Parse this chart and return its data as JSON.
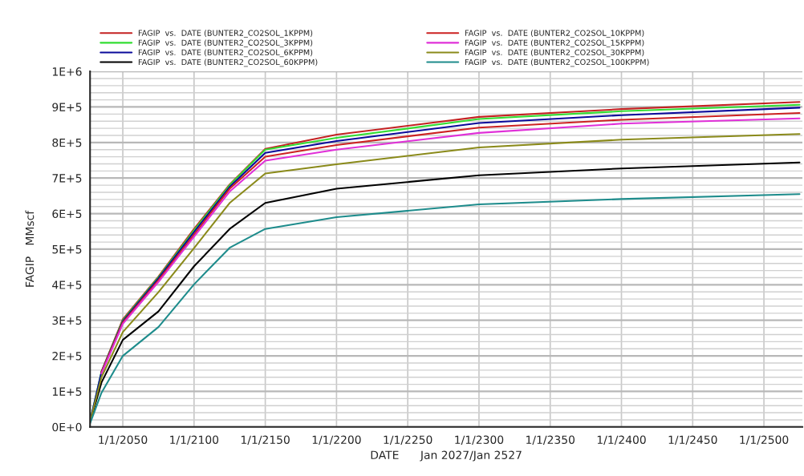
{
  "chart_data": {
    "type": "line",
    "xlabel": "DATE      Jan 2027/Jan 2527",
    "ylabel": "FAGIP   MMscf",
    "x": [
      "2027-01-01",
      "2035-01-01",
      "2050-01-01",
      "2075-01-01",
      "2100-01-01",
      "2125-01-01",
      "2150-01-01",
      "2200-01-01",
      "2300-01-01",
      "2400-01-01",
      "2525-01-01"
    ],
    "series": [
      {
        "name": "FAGIP  vs.  DATE (BUNTER2_CO2SOL_1KPPM)",
        "color": "#c42222",
        "values": [
          null,
          156000,
          303000,
          423000,
          557000,
          682000,
          782000,
          822000,
          872000,
          894000,
          914000
        ]
      },
      {
        "name": "FAGIP  vs.  DATE (BUNTER2_CO2SOL_3KPPM)",
        "color": "#33dd33",
        "values": [
          15000,
          155000,
          300000,
          421000,
          553000,
          680000,
          780000,
          813000,
          866000,
          888000,
          906000
        ]
      },
      {
        "name": "FAGIP  vs.  DATE (BUNTER2_CO2SOL_6KPPM)",
        "color": "#0a0a9a",
        "values": [
          15000,
          154000,
          297000,
          418000,
          548000,
          675000,
          771000,
          804000,
          855000,
          877000,
          898000
        ]
      },
      {
        "name": "FAGIP  vs.  DATE (BUNTER2_CO2SOL_60KPPM)",
        "color": "#000000",
        "values": [
          13000,
          125000,
          245000,
          325000,
          452000,
          557000,
          630000,
          670000,
          708000,
          727000,
          744000
        ]
      },
      {
        "name": "FAGIP  vs.  DATE (BUNTER2_CO2SOL_10KPPM)",
        "color": "#cc2222",
        "values": [
          null,
          153000,
          294000,
          413000,
          541000,
          670000,
          760000,
          793000,
          842000,
          864000,
          883000
        ]
      },
      {
        "name": "FAGIP  vs.  DATE (BUNTER2_CO2SOL_15KPPM)",
        "color": "#e030d8",
        "values": [
          null,
          150000,
          290000,
          408000,
          535000,
          662000,
          749000,
          780000,
          827000,
          853000,
          868000
        ]
      },
      {
        "name": "FAGIP  vs.  DATE (BUNTER2_CO2SOL_30KPPM)",
        "color": "#8a8a1a",
        "values": [
          14000,
          140000,
          267000,
          379000,
          503000,
          630000,
          713000,
          739000,
          786000,
          808000,
          824000
        ]
      },
      {
        "name": "FAGIP  vs.  DATE (BUNTER2_CO2SOL_100KPPM)",
        "color": "#1e8c8c",
        "values": [
          10000,
          96000,
          200000,
          281000,
          401000,
          504000,
          557000,
          590000,
          626000,
          641000,
          655000
        ]
      }
    ],
    "xlim": [
      "2027-01-01",
      "2527-01-01"
    ],
    "xticks": [
      {
        "value": "2050-01-01",
        "label": "1/1/2050"
      },
      {
        "value": "2100-01-01",
        "label": "1/1/2100"
      },
      {
        "value": "2150-01-01",
        "label": "1/1/2150"
      },
      {
        "value": "2200-01-01",
        "label": "1/1/2200"
      },
      {
        "value": "2250-01-01",
        "label": "1/1/2250"
      },
      {
        "value": "2300-01-01",
        "label": "1/1/2300"
      },
      {
        "value": "2350-01-01",
        "label": "1/1/2350"
      },
      {
        "value": "2400-01-01",
        "label": "1/1/2400"
      },
      {
        "value": "2450-01-01",
        "label": "1/1/2450"
      },
      {
        "value": "2500-01-01",
        "label": "1/1/2500"
      }
    ],
    "ylim": [
      0,
      1000000
    ],
    "yticks": [
      {
        "value": 0,
        "label": "0E+0"
      },
      {
        "value": 20000,
        "label": null
      },
      {
        "value": 40000,
        "label": null
      },
      {
        "value": 60000,
        "label": null
      },
      {
        "value": 80000,
        "label": null
      },
      {
        "value": 100000,
        "label": "1E+5"
      },
      {
        "value": 120000,
        "label": null
      },
      {
        "value": 140000,
        "label": null
      },
      {
        "value": 160000,
        "label": null
      },
      {
        "value": 180000,
        "label": null
      },
      {
        "value": 200000,
        "label": "2E+5"
      },
      {
        "value": 220000,
        "label": null
      },
      {
        "value": 240000,
        "label": null
      },
      {
        "value": 260000,
        "label": null
      },
      {
        "value": 280000,
        "label": null
      },
      {
        "value": 300000,
        "label": "3E+5"
      },
      {
        "value": 320000,
        "label": null
      },
      {
        "value": 340000,
        "label": null
      },
      {
        "value": 360000,
        "label": null
      },
      {
        "value": 380000,
        "label": null
      },
      {
        "value": 400000,
        "label": "4E+5"
      },
      {
        "value": 420000,
        "label": null
      },
      {
        "value": 440000,
        "label": null
      },
      {
        "value": 460000,
        "label": null
      },
      {
        "value": 480000,
        "label": null
      },
      {
        "value": 500000,
        "label": "5E+5"
      },
      {
        "value": 520000,
        "label": null
      },
      {
        "value": 540000,
        "label": null
      },
      {
        "value": 560000,
        "label": null
      },
      {
        "value": 580000,
        "label": null
      },
      {
        "value": 600000,
        "label": "6E+5"
      },
      {
        "value": 620000,
        "label": null
      },
      {
        "value": 640000,
        "label": null
      },
      {
        "value": 660000,
        "label": null
      },
      {
        "value": 680000,
        "label": null
      },
      {
        "value": 700000,
        "label": "7E+5"
      },
      {
        "value": 720000,
        "label": null
      },
      {
        "value": 740000,
        "label": null
      },
      {
        "value": 760000,
        "label": null
      },
      {
        "value": 780000,
        "label": null
      },
      {
        "value": 800000,
        "label": "8E+5"
      },
      {
        "value": 820000,
        "label": null
      },
      {
        "value": 840000,
        "label": null
      },
      {
        "value": 860000,
        "label": null
      },
      {
        "value": 880000,
        "label": null
      },
      {
        "value": 900000,
        "label": "9E+5"
      },
      {
        "value": 920000,
        "label": null
      },
      {
        "value": 940000,
        "label": null
      },
      {
        "value": 960000,
        "label": null
      },
      {
        "value": 980000,
        "label": null
      },
      {
        "value": 1000000,
        "label": "1E+6"
      }
    ],
    "grid": true,
    "legend": "top",
    "marker": "none",
    "line_style": "solid"
  }
}
